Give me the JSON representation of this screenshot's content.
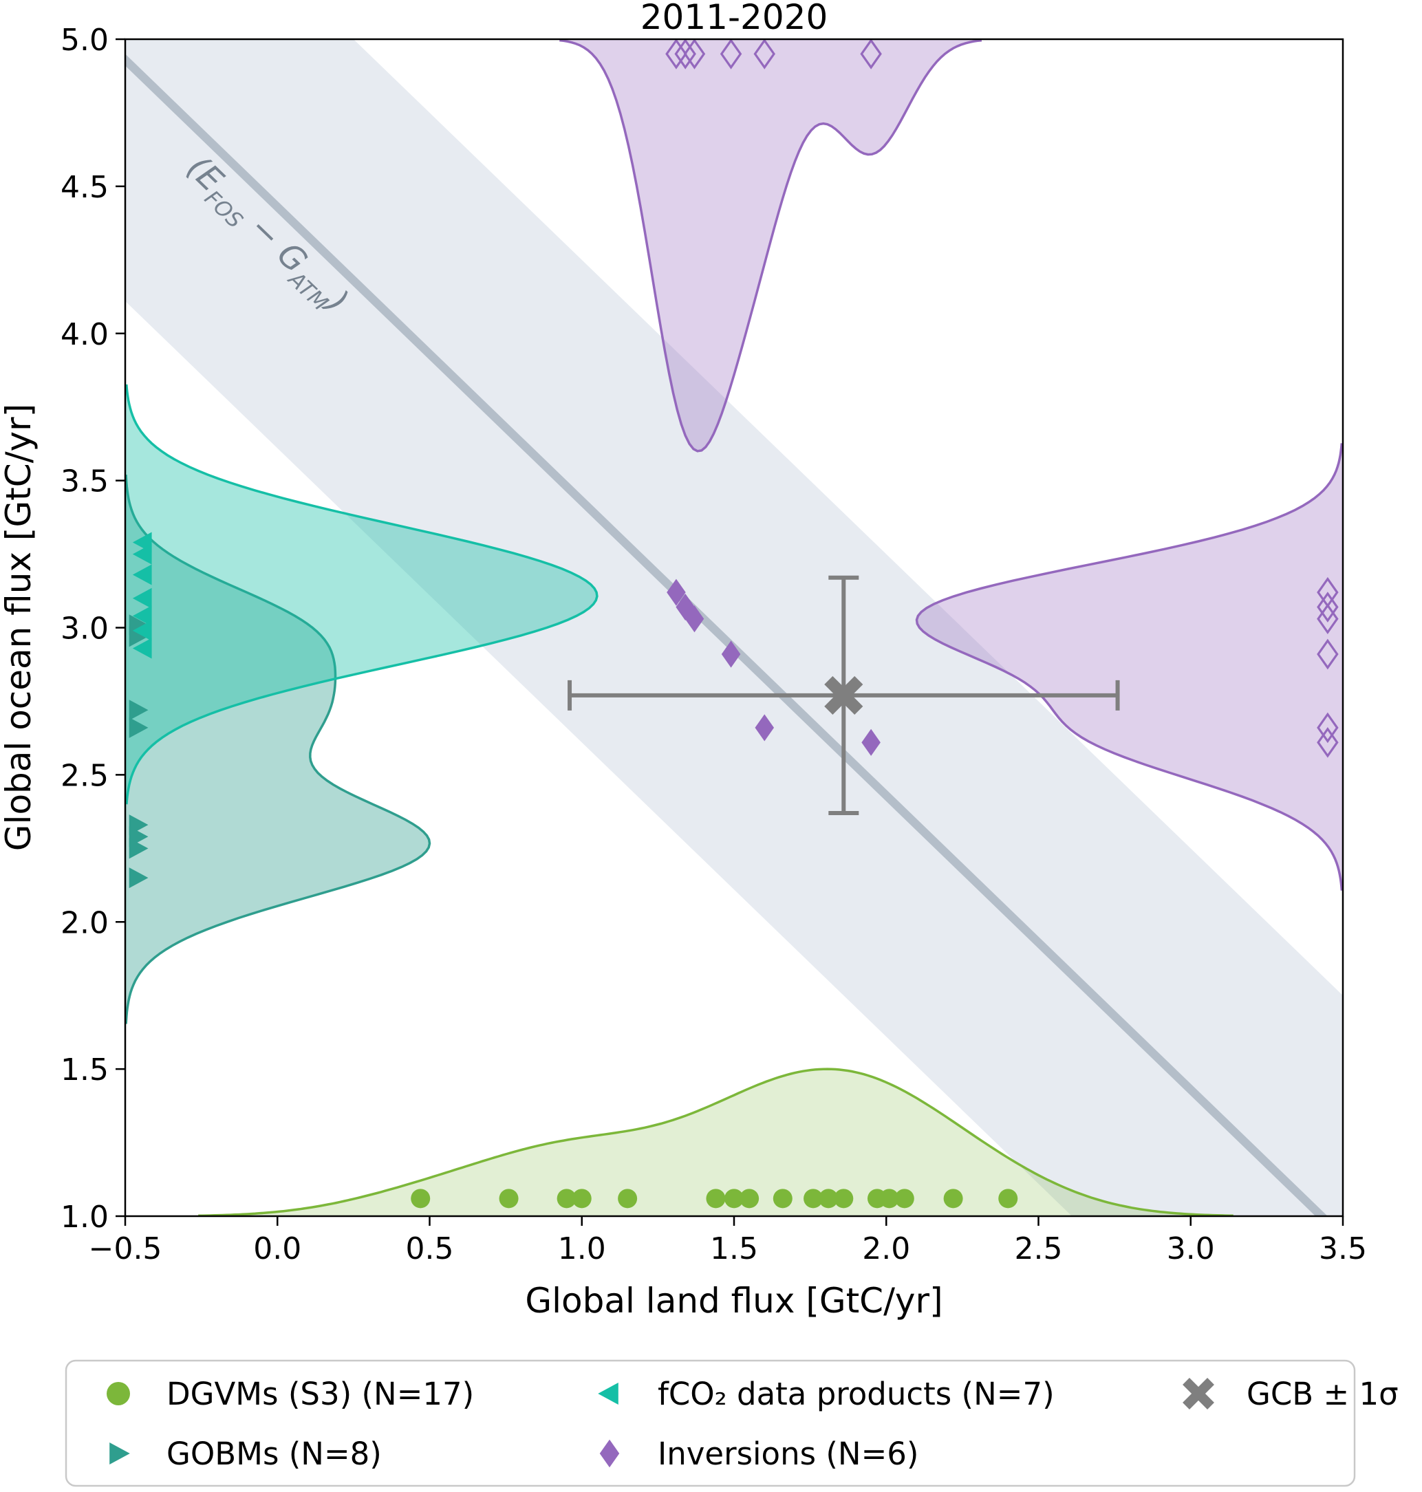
{
  "title": "2011-2020",
  "axes": {
    "xlabel": "Global land flux [GtC/yr]",
    "ylabel": "Global ocean flux [GtC/yr]",
    "xlim": [
      -0.5,
      3.5
    ],
    "ylim": [
      1.0,
      5.0
    ],
    "xticks": [
      -0.5,
      0.0,
      0.5,
      1.0,
      1.5,
      2.0,
      2.5,
      3.0,
      3.5
    ],
    "xtick_labels": [
      "−0.5",
      "0.0",
      "0.5",
      "1.0",
      "1.5",
      "2.0",
      "2.5",
      "3.0",
      "3.5"
    ],
    "yticks": [
      1.0,
      1.5,
      2.0,
      2.5,
      3.0,
      3.5,
      4.0,
      4.5,
      5.0
    ],
    "ytick_labels": [
      "1.0",
      "1.5",
      "2.0",
      "2.5",
      "3.0",
      "3.5",
      "4.0",
      "4.5",
      "5.0"
    ]
  },
  "band": {
    "label_open": "(E",
    "label_sub1": "FOS",
    "label_mid": " − G",
    "label_sub2": "ATM",
    "label_close": ")",
    "center_sum": 4.43,
    "light_halfwidth": 0.82,
    "dark_halfwidth": 0.02,
    "light_color": "#e7ebf1",
    "dark_color": "#b4bec9",
    "label_color": "#76828f"
  },
  "legend": {
    "items": [
      {
        "name": "dgvms",
        "label": "DGVMs (S3) (N=17)",
        "marker": "circle",
        "color": "#7cb73a"
      },
      {
        "name": "gobms",
        "label": "GOBMs (N=8)",
        "marker": "triangle-right",
        "color": "#2f9e8e"
      },
      {
        "name": "fco2",
        "label": "fCO₂ data products (N=7)",
        "marker": "triangle-left",
        "color": "#15bfa6"
      },
      {
        "name": "inversions",
        "label": "Inversions (N=6)",
        "marker": "diamond",
        "color": "#9468bd"
      },
      {
        "name": "gcb",
        "label": "GCB ± 1σ",
        "marker": "X",
        "color": "#7f7f7f"
      }
    ]
  },
  "chart_data": {
    "type": "scatter",
    "description": "Global land flux vs global ocean flux for 2011-2020 with marginal density violins and a diagonal fossil-minus-atmospheric-growth constraint band",
    "xlabel": "Global land flux [GtC/yr]",
    "ylabel": "Global ocean flux [GtC/yr]",
    "series": [
      {
        "name": "dgvms",
        "label": "DGVMs (S3) (N=17)",
        "marker": "circle",
        "color": "#7cb73a",
        "land_flux_values": [
          0.47,
          0.76,
          0.95,
          1.0,
          1.15,
          1.44,
          1.5,
          1.55,
          1.66,
          1.76,
          1.81,
          1.86,
          1.97,
          2.01,
          2.06,
          2.22,
          2.4
        ],
        "rug_y": 1.06,
        "violin": {
          "side": "bottom",
          "bandwidth": 0.27,
          "extent": 0.5,
          "fill_opacity": 0.22
        }
      },
      {
        "name": "gobms",
        "label": "GOBMs (N=8)",
        "marker": "triangle-right",
        "color": "#2f9e8e",
        "ocean_flux_values": [
          3.01,
          2.97,
          2.72,
          2.66,
          2.33,
          2.29,
          2.25,
          2.15
        ],
        "rug_x": -0.46,
        "violin": {
          "side": "left",
          "bandwidth": 0.16,
          "extent": 1.0,
          "fill_opacity": 0.38
        }
      },
      {
        "name": "fco2",
        "label": "fCO₂ data products (N=7)",
        "marker": "triangle-left",
        "color": "#15bfa6",
        "ocean_flux_values": [
          3.29,
          3.25,
          3.18,
          3.1,
          3.04,
          2.99,
          2.93
        ],
        "rug_x": -0.44,
        "violin": {
          "side": "left",
          "bandwidth": 0.175,
          "extent": 1.55,
          "fill_opacity": 0.38
        }
      },
      {
        "name": "inversions",
        "label": "Inversions (N=6)",
        "marker": "diamond",
        "color": "#9468bd",
        "points": [
          [
            1.31,
            3.12
          ],
          [
            1.34,
            3.07
          ],
          [
            1.37,
            3.03
          ],
          [
            1.49,
            2.91
          ],
          [
            1.6,
            2.66
          ],
          [
            1.95,
            2.61
          ]
        ],
        "rug_top_y": 4.95,
        "rug_right_x": 3.45,
        "violin_top": {
          "side": "top",
          "bandwidth": 0.12,
          "extent": 1.4,
          "fill_opacity": 0.3
        },
        "violin_right": {
          "side": "right",
          "bandwidth": 0.16,
          "extent": 1.4,
          "fill_opacity": 0.3
        }
      },
      {
        "name": "gcb",
        "label": "GCB ± 1σ",
        "marker": "X",
        "color": "#7f7f7f",
        "point": [
          1.86,
          2.77
        ],
        "xerr": 0.9,
        "yerr": 0.4
      }
    ]
  }
}
